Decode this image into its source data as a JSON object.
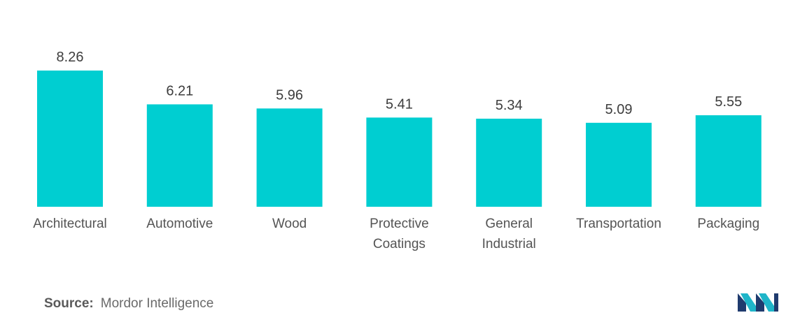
{
  "chart_data": {
    "type": "bar",
    "categories": [
      [
        "Architectural"
      ],
      [
        "Automotive"
      ],
      [
        "Wood"
      ],
      [
        "Protective",
        "Coatings"
      ],
      [
        "General",
        "Industrial"
      ],
      [
        "Transportation"
      ],
      [
        "Packaging"
      ]
    ],
    "values": [
      8.26,
      6.21,
      5.96,
      5.41,
      5.34,
      5.09,
      5.55
    ],
    "value_labels": [
      "8.26",
      "6.21",
      "5.96",
      "5.41",
      "5.34",
      "5.09",
      "5.55"
    ],
    "title": "",
    "xlabel": "",
    "ylabel": "",
    "ylim": [
      0,
      8.26
    ],
    "grid": false,
    "bar_color": "#00CED1"
  },
  "footer": {
    "source_label": "Source:",
    "source_text": "Mordor Intelligence"
  },
  "logo": {
    "icon": "mordor-intelligence-logo-icon",
    "colors": [
      "#1f3b6e",
      "#1fb5c9"
    ]
  }
}
